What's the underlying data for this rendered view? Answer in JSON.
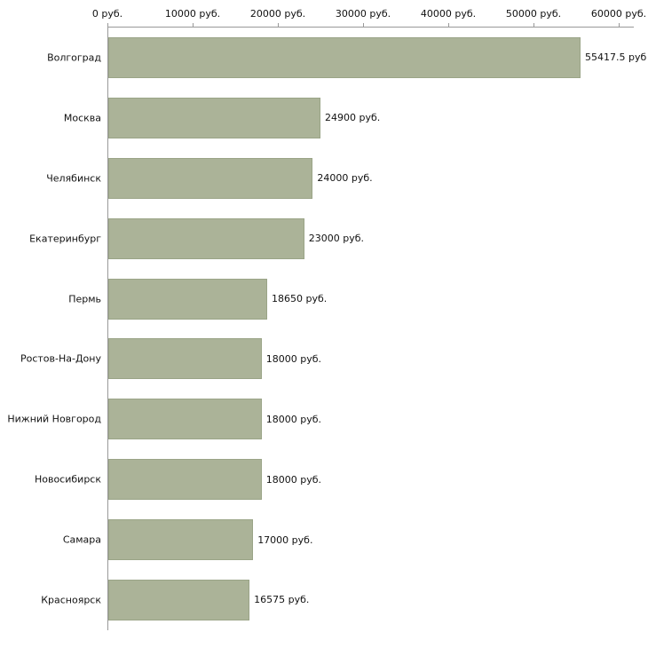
{
  "chart_data": {
    "type": "bar",
    "orientation": "horizontal",
    "title": "",
    "xlabel": "",
    "ylabel": "",
    "xlim": [
      0,
      60000
    ],
    "grid": false,
    "legend": "none",
    "categories": [
      "Волгоград",
      "Москва",
      "Челябинск",
      "Екатеринбург",
      "Пермь",
      "Ростов-На-Дону",
      "Нижний Новгород",
      "Новосибирск",
      "Самара",
      "Красноярск"
    ],
    "values": [
      55417.5,
      24900,
      24000,
      23000,
      18650,
      18000,
      18000,
      18000,
      17000,
      16575
    ],
    "value_labels": [
      "55417.5 руб",
      "24900 руб.",
      "24000 руб.",
      "23000 руб.",
      "18650 руб.",
      "18000 руб.",
      "18000 руб.",
      "18000 руб.",
      "17000 руб.",
      "16575 руб."
    ],
    "x_ticks": [
      {
        "value": 0,
        "label": "0 руб."
      },
      {
        "value": 10000,
        "label": "10000 руб."
      },
      {
        "value": 20000,
        "label": "20000 руб."
      },
      {
        "value": 30000,
        "label": "30000 руб."
      },
      {
        "value": 40000,
        "label": "40000 руб."
      },
      {
        "value": 50000,
        "label": "50000 руб."
      },
      {
        "value": 60000,
        "label": "60000 руб."
      }
    ],
    "colors": {
      "bar_fill": "#abb398",
      "bar_border": "#9aa487",
      "axis": "#999999",
      "text": "#000000",
      "background": "#ffffff"
    }
  }
}
